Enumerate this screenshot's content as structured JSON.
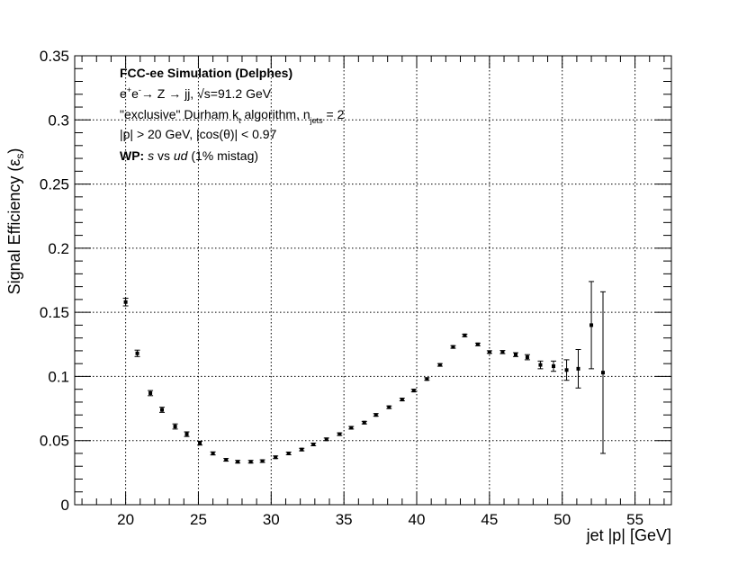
{
  "chart_data": {
    "type": "scatter",
    "xlabel": "jet |p| [GeV]",
    "ylabel": "Signal Efficiency (ε",
    "ylabel_sub": "s",
    "ylabel_close": ")",
    "xlim": [
      16.5,
      57.5
    ],
    "ylim": [
      0,
      0.35
    ],
    "grid": true,
    "x_ticks": [
      20,
      25,
      30,
      35,
      40,
      45,
      50,
      55
    ],
    "x_tick_labels": [
      "20",
      "25",
      "30",
      "35",
      "40",
      "45",
      "50",
      "55"
    ],
    "y_ticks": [
      0,
      0.05,
      0.1,
      0.15,
      0.2,
      0.25,
      0.3,
      0.35
    ],
    "y_tick_labels": [
      "0",
      "0.05",
      "0.1",
      "0.15",
      "0.2",
      "0.25",
      "0.3",
      "0.35"
    ],
    "annotations": {
      "line1": "FCC-ee Simulation (Delphes)",
      "line2_a": "e",
      "line2_sup1": "+",
      "line2_b": "e",
      "line2_sup2": "-",
      "line2_c": "→ Z → jj, √s=91.2 GeV",
      "line3_a": "\"exclusive\" Durham k",
      "line3_sub1": "t",
      "line3_b": " algorithm, n",
      "line3_sub2": "jets",
      "line3_c": " = 2",
      "line4": "|p| > 20 GeV, |cos(θ)| < 0.97",
      "line5_bold": "WP:",
      "line5_i1": "s",
      "line5_m": " vs ",
      "line5_i2": "ud",
      "line5_e": " (1% mistag)"
    },
    "series": [
      {
        "points": [
          {
            "x": 20.0,
            "y": 0.158,
            "err": 0.003
          },
          {
            "x": 20.8,
            "y": 0.118,
            "err": 0.0025
          },
          {
            "x": 21.7,
            "y": 0.087,
            "err": 0.002
          },
          {
            "x": 22.5,
            "y": 0.074,
            "err": 0.002
          },
          {
            "x": 23.4,
            "y": 0.061,
            "err": 0.002
          },
          {
            "x": 24.2,
            "y": 0.055,
            "err": 0.0018
          },
          {
            "x": 25.1,
            "y": 0.048,
            "err": 0.0015
          },
          {
            "x": 26.0,
            "y": 0.04,
            "err": 0.0012
          },
          {
            "x": 26.9,
            "y": 0.035,
            "err": 0.001
          },
          {
            "x": 27.7,
            "y": 0.0335,
            "err": 0.001
          },
          {
            "x": 28.6,
            "y": 0.0335,
            "err": 0.001
          },
          {
            "x": 29.4,
            "y": 0.034,
            "err": 0.001
          },
          {
            "x": 30.3,
            "y": 0.037,
            "err": 0.001
          },
          {
            "x": 31.2,
            "y": 0.04,
            "err": 0.001
          },
          {
            "x": 32.1,
            "y": 0.043,
            "err": 0.001
          },
          {
            "x": 32.9,
            "y": 0.047,
            "err": 0.001
          },
          {
            "x": 33.8,
            "y": 0.051,
            "err": 0.001
          },
          {
            "x": 34.7,
            "y": 0.055,
            "err": 0.001
          },
          {
            "x": 35.5,
            "y": 0.06,
            "err": 0.001
          },
          {
            "x": 36.4,
            "y": 0.064,
            "err": 0.001
          },
          {
            "x": 37.2,
            "y": 0.07,
            "err": 0.001
          },
          {
            "x": 38.1,
            "y": 0.076,
            "err": 0.001
          },
          {
            "x": 39.0,
            "y": 0.082,
            "err": 0.001
          },
          {
            "x": 39.8,
            "y": 0.089,
            "err": 0.001
          },
          {
            "x": 40.7,
            "y": 0.098,
            "err": 0.001
          },
          {
            "x": 41.6,
            "y": 0.109,
            "err": 0.001
          },
          {
            "x": 42.5,
            "y": 0.123,
            "err": 0.001
          },
          {
            "x": 43.3,
            "y": 0.132,
            "err": 0.001
          },
          {
            "x": 44.2,
            "y": 0.125,
            "err": 0.001
          },
          {
            "x": 45.0,
            "y": 0.119,
            "err": 0.001
          },
          {
            "x": 45.9,
            "y": 0.119,
            "err": 0.0012
          },
          {
            "x": 46.8,
            "y": 0.117,
            "err": 0.0015
          },
          {
            "x": 47.6,
            "y": 0.115,
            "err": 0.002
          },
          {
            "x": 48.5,
            "y": 0.109,
            "err": 0.003
          },
          {
            "x": 49.4,
            "y": 0.108,
            "err": 0.004
          },
          {
            "x": 50.3,
            "y": 0.105,
            "err": 0.008
          },
          {
            "x": 51.1,
            "y": 0.106,
            "err": 0.015
          },
          {
            "x": 52.0,
            "y": 0.14,
            "err": 0.034
          },
          {
            "x": 52.8,
            "y": 0.103,
            "err": 0.063
          }
        ]
      }
    ]
  }
}
